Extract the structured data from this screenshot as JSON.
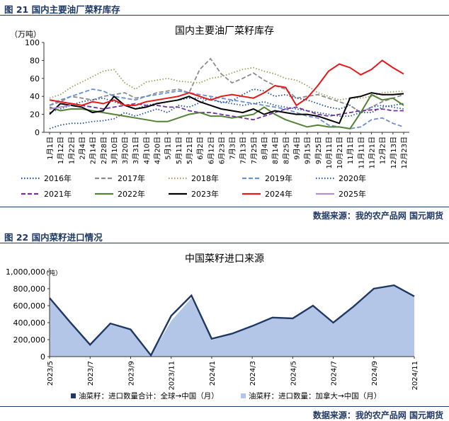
{
  "figures": [
    {
      "caption": "图 21  国内主要油厂菜籽库存",
      "source": "数据来源：我的农产品网  国元期货"
    },
    {
      "caption": "图 22  国内菜籽进口情况",
      "source": "数据来源：我的农产品网  国元期货"
    }
  ],
  "chart_data": [
    {
      "type": "line",
      "title": "国内主要油厂菜籽库存",
      "unit": "（万吨）",
      "ylim": [
        0,
        100
      ],
      "yticks": [
        0,
        20,
        40,
        60,
        80,
        100
      ],
      "x_labels": [
        "1月1日",
        "1月12日",
        "1月22日",
        "2月4日",
        "2月14日",
        "2月28日",
        "3月10日",
        "3月20日",
        "3月31日",
        "4月10日",
        "4月20日",
        "5月1日",
        "5月11日",
        "5月21日",
        "6月2日",
        "6月12日",
        "6月23日",
        "7月3日",
        "7月13日",
        "7月25日",
        "8月4日",
        "8月14日",
        "8月25日",
        "9月4日",
        "9月15日",
        "9月25日",
        "10月11日",
        "10月21日",
        "11月1日",
        "11月11日",
        "11月21日",
        "12月2日",
        "12月13日",
        "12月23日"
      ],
      "legend_position": "bottom",
      "series": [
        {
          "name": "2016年",
          "color": "#1f4e9a",
          "style": "dotted",
          "values": [
            4,
            8,
            10,
            10,
            12,
            13,
            15,
            22,
            18,
            22,
            26,
            22,
            30,
            28,
            33,
            38,
            33,
            35,
            42,
            48,
            46,
            40,
            42,
            38,
            36,
            32,
            28,
            26,
            30,
            22,
            22,
            28,
            30,
            32
          ]
        },
        {
          "name": "2017年",
          "color": "#8c8c8c",
          "style": "dashed",
          "values": [
            30,
            34,
            40,
            38,
            36,
            40,
            42,
            44,
            38,
            40,
            44,
            46,
            48,
            44,
            70,
            82,
            65,
            55,
            60,
            66,
            58,
            52,
            48,
            38,
            40,
            42,
            38,
            34,
            30,
            22,
            28,
            34,
            38,
            42
          ]
        },
        {
          "name": "2018年",
          "color": "#a0a060",
          "style": "dotted",
          "values": [
            38,
            42,
            50,
            56,
            62,
            68,
            70,
            55,
            48,
            56,
            58,
            60,
            57,
            56,
            55,
            60,
            62,
            66,
            70,
            72,
            68,
            65,
            60,
            58,
            52,
            44,
            40,
            36,
            38,
            38,
            40,
            44,
            45,
            46
          ]
        },
        {
          "name": "2019年",
          "color": "#6b8fd4",
          "style": "dashed",
          "values": [
            30,
            36,
            40,
            44,
            48,
            46,
            40,
            38,
            36,
            40,
            42,
            44,
            46,
            44,
            42,
            40,
            38,
            36,
            34,
            32,
            30,
            28,
            26,
            22,
            18,
            16,
            8,
            6,
            4,
            6,
            14,
            16,
            10,
            6
          ]
        },
        {
          "name": "2020年",
          "color": "#2b5aa8",
          "style": "dotted",
          "values": [
            22,
            26,
            30,
            34,
            36,
            38,
            34,
            30,
            26,
            30,
            32,
            34,
            36,
            38,
            38,
            36,
            34,
            32,
            30,
            32,
            34,
            30,
            28,
            26,
            24,
            22,
            20,
            18,
            18,
            22,
            28,
            30,
            28,
            26
          ]
        },
        {
          "name": "2021年",
          "color": "#7030a0",
          "style": "dashed",
          "values": [
            36,
            34,
            32,
            30,
            28,
            26,
            28,
            30,
            32,
            30,
            30,
            28,
            28,
            24,
            22,
            22,
            20,
            18,
            16,
            14,
            18,
            22,
            26,
            28,
            24,
            20,
            18,
            20,
            22,
            24,
            25,
            26,
            24,
            24
          ]
        },
        {
          "name": "2022年",
          "color": "#548235",
          "style": "solid",
          "values": [
            28,
            24,
            26,
            26,
            24,
            22,
            20,
            18,
            16,
            14,
            12,
            12,
            16,
            20,
            22,
            18,
            18,
            16,
            18,
            20,
            28,
            20,
            14,
            10,
            6,
            8,
            6,
            6,
            4,
            22,
            42,
            36,
            38,
            30
          ]
        },
        {
          "name": "2023年",
          "color": "#000000",
          "style": "solid",
          "values": [
            20,
            32,
            30,
            28,
            22,
            24,
            40,
            30,
            26,
            28,
            32,
            34,
            36,
            40,
            34,
            30,
            26,
            24,
            22,
            26,
            20,
            24,
            22,
            20,
            20,
            18,
            14,
            10,
            38,
            40,
            44,
            42,
            42,
            43
          ]
        },
        {
          "name": "2024年",
          "color": "#e81818",
          "style": "solid",
          "values": [
            36,
            34,
            32,
            30,
            34,
            32,
            36,
            30,
            30,
            34,
            36,
            38,
            40,
            44,
            40,
            36,
            40,
            42,
            40,
            38,
            44,
            52,
            50,
            30,
            38,
            52,
            68,
            76,
            72,
            64,
            70,
            80,
            72,
            65
          ]
        },
        {
          "name": "2025年",
          "color": "#b090d8",
          "style": "solid",
          "values": [
            26,
            28,
            30
          ]
        }
      ]
    },
    {
      "type": "area",
      "title": "中国菜籽进口来源",
      "unit": "（吨）",
      "ylim": [
        0,
        1000000
      ],
      "yticks": [
        0,
        200000,
        400000,
        600000,
        800000,
        1000000
      ],
      "ytick_labels": [
        "0",
        "200,000",
        "400,000",
        "600,000",
        "800,000",
        "1,000,000"
      ],
      "x": [
        "2023/5",
        "2023/6",
        "2023/7",
        "2023/8",
        "2023/9",
        "2023/10",
        "2023/11",
        "2023/12",
        "2024/1",
        "2024/2",
        "2024/3",
        "2024/4",
        "2024/5",
        "2024/6",
        "2024/7",
        "2024/8",
        "2024/9",
        "2024/10",
        "2024/11"
      ],
      "x_tick_labels": [
        "2023/5",
        "2023/7",
        "2023/9",
        "2023/11",
        "2024/1",
        "2024/3",
        "2024/5",
        "2024/7",
        "2024/9",
        "2024/11"
      ],
      "legend_position": "bottom",
      "series": [
        {
          "name": "油菜籽：进口数量合计：全球→中国（月）",
          "color": "#1f3864",
          "kind": "line",
          "values": [
            690000,
            410000,
            140000,
            390000,
            320000,
            15000,
            480000,
            720000,
            210000,
            270000,
            360000,
            460000,
            450000,
            600000,
            400000,
            590000,
            800000,
            840000,
            710000
          ]
        },
        {
          "name": "油菜籽：进口数量：加拿大→中国（月）",
          "color": "#b4c6e7",
          "kind": "area",
          "values": [
            670000,
            400000,
            130000,
            375000,
            310000,
            10000,
            420000,
            690000,
            195000,
            260000,
            350000,
            450000,
            440000,
            590000,
            390000,
            580000,
            790000,
            830000,
            700000
          ]
        }
      ]
    }
  ]
}
